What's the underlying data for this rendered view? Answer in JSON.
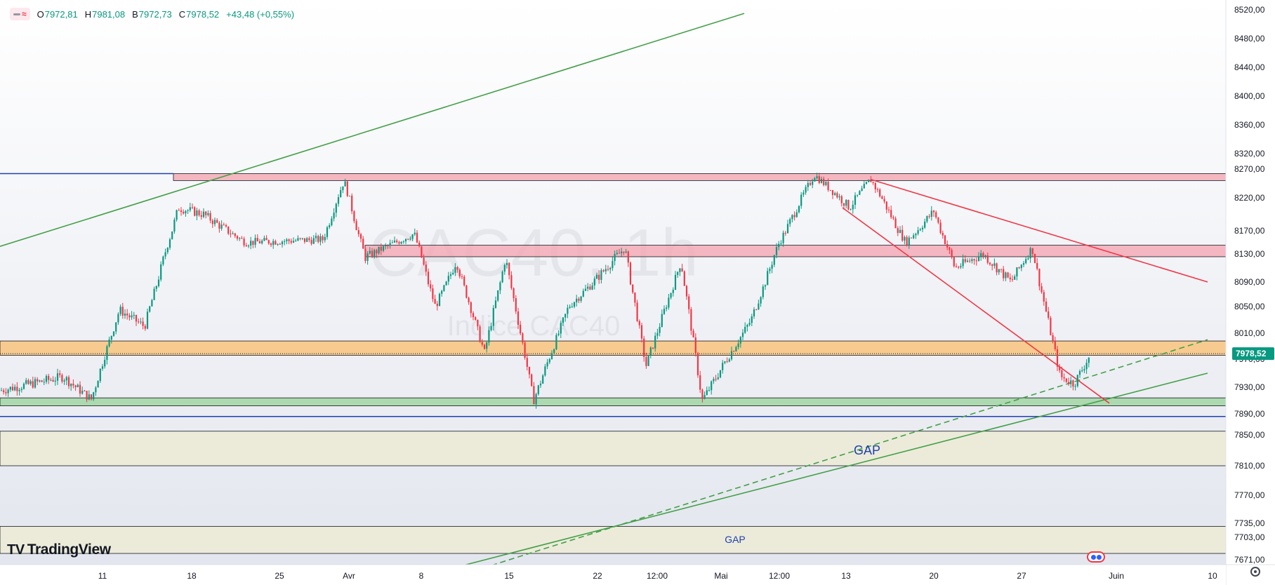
{
  "legend": {
    "open_label": "O",
    "open": "7972,81",
    "high_label": "H",
    "high": "7981,08",
    "low_label": "B",
    "low": "7972,73",
    "close_label": "C",
    "close": "7978,52",
    "change": "+43,48 (+0,55%)"
  },
  "logo_text": "TradingView",
  "watermark": {
    "symbol": "CAC40, 1h",
    "description": "Indice CAC40"
  },
  "annotations": {
    "gap_upper": "GAP",
    "gap_lower": "GAP"
  },
  "price_label": "7978,52",
  "colors": {
    "up": "#089981",
    "down": "#f23645",
    "support_line": "#43a047",
    "resistance_line": "#f23645",
    "level_line": "#1e40af",
    "zone_red": "#f4a6b1",
    "zone_orange": "#f7c784",
    "zone_green": "#a5d6a7",
    "zone_gap": "#ecebd7",
    "price_badge": "#089981",
    "gap_text": "#1e40af"
  },
  "chart_data": {
    "type": "candlestick",
    "symbol": "CAC40",
    "timeframe": "1h",
    "y_ticks": [
      "8520,00",
      "8480,00",
      "8440,00",
      "8400,00",
      "8360,00",
      "8320,00",
      "8270,00",
      "8220,00",
      "8170,00",
      "8130,00",
      "8090,00",
      "8050,00",
      "8010,00",
      "7970,00",
      "7930,00",
      "7890,00",
      "7850,00",
      "7810,00",
      "7770,00",
      "7735,00",
      "7703,00",
      "7671,00"
    ],
    "x_ticks": [
      "11",
      "18",
      "25",
      "Avr",
      "8",
      "15",
      "22",
      "12:00",
      "Mai",
      "12:00",
      "13",
      "20",
      "27",
      "Juin",
      "10"
    ],
    "last_price": 7978.52,
    "path": [
      {
        "t": 0.0,
        "p": 7925
      },
      {
        "t": 4.5,
        "p": 7945
      },
      {
        "t": 6.5,
        "p": 7912
      },
      {
        "t": 8.5,
        "p": 8045
      },
      {
        "t": 10.3,
        "p": 8020
      },
      {
        "t": 12.7,
        "p": 8205
      },
      {
        "t": 14.5,
        "p": 8195
      },
      {
        "t": 17.5,
        "p": 8150
      },
      {
        "t": 23.0,
        "p": 8155
      },
      {
        "t": 24.5,
        "p": 8250
      },
      {
        "t": 26.0,
        "p": 8125
      },
      {
        "t": 29.5,
        "p": 8165
      },
      {
        "t": 31.0,
        "p": 8050
      },
      {
        "t": 32.5,
        "p": 8120
      },
      {
        "t": 34.5,
        "p": 7980
      },
      {
        "t": 36.0,
        "p": 8125
      },
      {
        "t": 38.0,
        "p": 7910
      },
      {
        "t": 40.5,
        "p": 8050
      },
      {
        "t": 44.5,
        "p": 8140
      },
      {
        "t": 46.0,
        "p": 7960
      },
      {
        "t": 48.5,
        "p": 8120
      },
      {
        "t": 50.0,
        "p": 7910
      },
      {
        "t": 53.5,
        "p": 8030
      },
      {
        "t": 55.5,
        "p": 8150
      },
      {
        "t": 58.0,
        "p": 8260
      },
      {
        "t": 60.5,
        "p": 8205
      },
      {
        "t": 62.0,
        "p": 8252
      },
      {
        "t": 64.5,
        "p": 8150
      },
      {
        "t": 66.5,
        "p": 8200
      },
      {
        "t": 68.0,
        "p": 8110
      },
      {
        "t": 70.0,
        "p": 8130
      },
      {
        "t": 72.0,
        "p": 8090
      },
      {
        "t": 73.5,
        "p": 8140
      },
      {
        "t": 75.5,
        "p": 7945
      },
      {
        "t": 76.5,
        "p": 7935
      },
      {
        "t": 77.7,
        "p": 7978.5
      }
    ],
    "zones": [
      {
        "name": "resistance-zone",
        "from": 8250,
        "to": 8262,
        "color": "zone_red"
      },
      {
        "name": "mid-resistance-zone",
        "from": 8126,
        "to": 8145,
        "color": "zone_red"
      },
      {
        "name": "pivot-zone",
        "from": 7976,
        "to": 7998,
        "color": "zone_orange"
      },
      {
        "name": "support-zone",
        "from": 7902,
        "to": 7914,
        "color": "zone_green"
      },
      {
        "name": "gap-zone-upper",
        "from": 7810,
        "to": 7857,
        "color": "zone_gap"
      },
      {
        "name": "gap-zone-lower",
        "from": 7680,
        "to": 7728,
        "color": "zone_gap"
      }
    ],
    "levels": [
      {
        "name": "level-8262",
        "price": 8262
      },
      {
        "name": "level-7885",
        "price": 7885
      },
      {
        "name": "level-7663",
        "price": 7663
      }
    ],
    "trendlines": [
      {
        "name": "green-long-uptrend",
        "from": {
          "t": 0,
          "p": 8143
        },
        "to": {
          "t": 53,
          "p": 8515
        },
        "color": "support_line",
        "dashed": false
      },
      {
        "name": "green-support-solid",
        "from": {
          "t": 33,
          "p": 7663
        },
        "to": {
          "t": 86,
          "p": 7950
        },
        "color": "support_line",
        "dashed": false
      },
      {
        "name": "green-support-dashed",
        "from": {
          "t": 35,
          "p": 7663
        },
        "to": {
          "t": 86,
          "p": 8000
        },
        "color": "support_line",
        "dashed": true
      },
      {
        "name": "red-downtrend-upper",
        "from": {
          "t": 62,
          "p": 8252
        },
        "to": {
          "t": 86,
          "p": 8090
        },
        "color": "resistance_line",
        "dashed": false
      },
      {
        "name": "red-downtrend-lower",
        "from": {
          "t": 60,
          "p": 8205
        },
        "to": {
          "t": 79,
          "p": 7906
        },
        "color": "resistance_line",
        "dashed": false
      }
    ]
  }
}
